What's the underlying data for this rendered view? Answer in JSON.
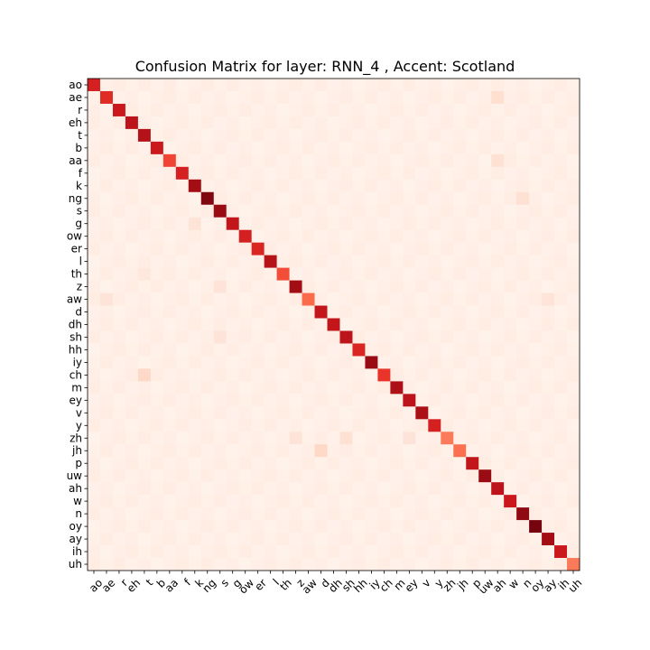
{
  "chart_data": {
    "type": "heatmap",
    "title": "Confusion Matrix for layer: RNN_4 , Accent: Scotland",
    "labels": [
      "ao",
      "ae",
      "r",
      "eh",
      "t",
      "b",
      "aa",
      "f",
      "k",
      "ng",
      "s",
      "g",
      "ow",
      "er",
      "l",
      "th",
      "z",
      "aw",
      "d",
      "dh",
      "sh",
      "hh",
      "iy",
      "ch",
      "m",
      "ey",
      "v",
      "y",
      "zh",
      "jh",
      "p",
      "uw",
      "ah",
      "w",
      "n",
      "oy",
      "ay",
      "ih",
      "uh"
    ],
    "diagonal": [
      0.72,
      0.68,
      0.75,
      0.8,
      0.83,
      0.75,
      0.6,
      0.72,
      0.88,
      0.95,
      0.9,
      0.78,
      0.72,
      0.7,
      0.82,
      0.58,
      0.88,
      0.5,
      0.78,
      0.78,
      0.8,
      0.7,
      0.9,
      0.65,
      0.85,
      0.8,
      0.86,
      0.72,
      0.45,
      0.48,
      0.78,
      0.9,
      0.8,
      0.75,
      0.92,
      0.97,
      0.88,
      0.75,
      0.45
    ],
    "off_diagonal": [
      {
        "row": 0,
        "col": 6,
        "value": 0.05
      },
      {
        "row": 1,
        "col": 32,
        "value": 0.13
      },
      {
        "row": 6,
        "col": 32,
        "value": 0.12
      },
      {
        "row": 9,
        "col": 34,
        "value": 0.12
      },
      {
        "row": 11,
        "col": 8,
        "value": 0.1
      },
      {
        "row": 15,
        "col": 4,
        "value": 0.08
      },
      {
        "row": 16,
        "col": 10,
        "value": 0.1
      },
      {
        "row": 17,
        "col": 1,
        "value": 0.1
      },
      {
        "row": 17,
        "col": 36,
        "value": 0.1
      },
      {
        "row": 20,
        "col": 10,
        "value": 0.1
      },
      {
        "row": 23,
        "col": 4,
        "value": 0.15
      },
      {
        "row": 28,
        "col": 16,
        "value": 0.1
      },
      {
        "row": 28,
        "col": 20,
        "value": 0.12
      },
      {
        "row": 28,
        "col": 25,
        "value": 0.1
      },
      {
        "row": 29,
        "col": 18,
        "value": 0.15
      },
      {
        "row": 31,
        "col": 31,
        "value": 0.9
      }
    ],
    "background_level": 0.02,
    "colormap": {
      "low": "#fff5f0",
      "mid": "#fb6a4a",
      "high": "#67000d"
    }
  }
}
